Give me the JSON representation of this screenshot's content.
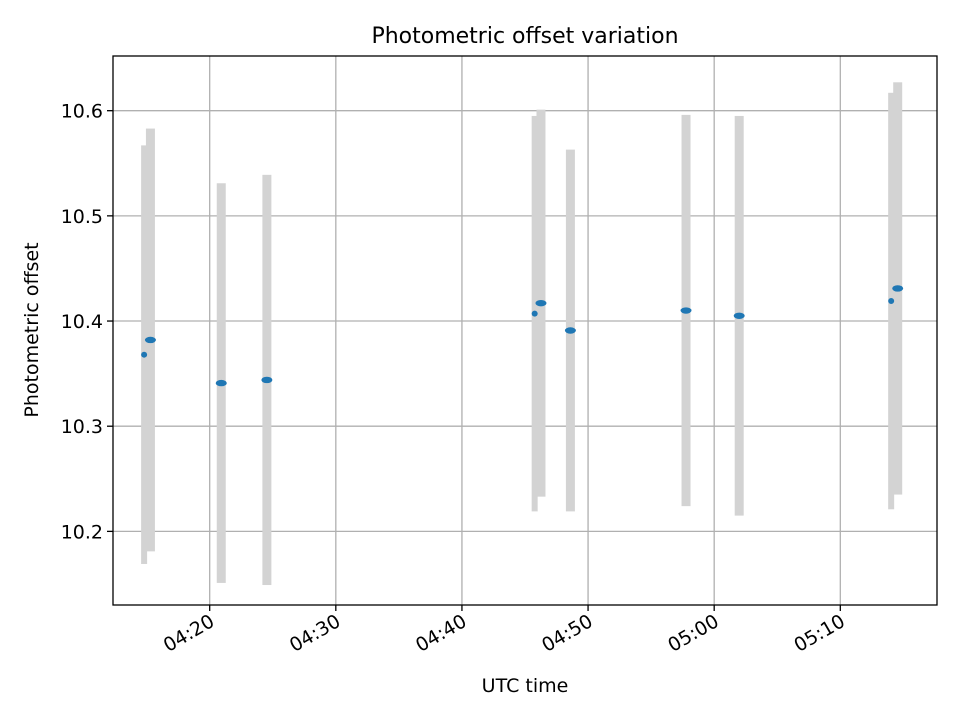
{
  "chart_data": {
    "type": "scatter",
    "title": "Photometric offset variation",
    "xlabel": "UTC time",
    "ylabel": "Photometric offset",
    "x_axis": {
      "kind": "time",
      "range": [
        "04:12:20",
        "05:17:40"
      ],
      "ticks": [
        "04:20",
        "04:30",
        "04:40",
        "04:50",
        "05:00",
        "05:10"
      ]
    },
    "y_axis": {
      "range": [
        10.13,
        10.652
      ],
      "ticks": [
        "10.2",
        "10.3",
        "10.4",
        "10.5",
        "10.6"
      ]
    },
    "grid": true,
    "points": [
      {
        "t": "04:14:48",
        "y": 10.368,
        "err": 0.199,
        "size": "small"
      },
      {
        "t": "04:15:18",
        "y": 10.382,
        "err": 0.201,
        "size": "large"
      },
      {
        "t": "04:20:55",
        "y": 10.341,
        "err": 0.19,
        "size": "large"
      },
      {
        "t": "04:24:32",
        "y": 10.344,
        "err": 0.195,
        "size": "large"
      },
      {
        "t": "04:45:46",
        "y": 10.407,
        "err": 0.188,
        "size": "small"
      },
      {
        "t": "04:46:16",
        "y": 10.417,
        "err": 0.184,
        "size": "large"
      },
      {
        "t": "04:48:36",
        "y": 10.391,
        "err": 0.172,
        "size": "large"
      },
      {
        "t": "04:57:46",
        "y": 10.41,
        "err": 0.186,
        "size": "large"
      },
      {
        "t": "05:01:59",
        "y": 10.405,
        "err": 0.19,
        "size": "large"
      },
      {
        "t": "05:14:02",
        "y": 10.419,
        "err": 0.198,
        "size": "small"
      },
      {
        "t": "05:14:33",
        "y": 10.431,
        "err": 0.196,
        "size": "large"
      }
    ],
    "colors": {
      "points": "#1f77b4",
      "errorbars": "#d3d3d3",
      "grid": "#b0b0b0",
      "frame": "#000000"
    }
  }
}
